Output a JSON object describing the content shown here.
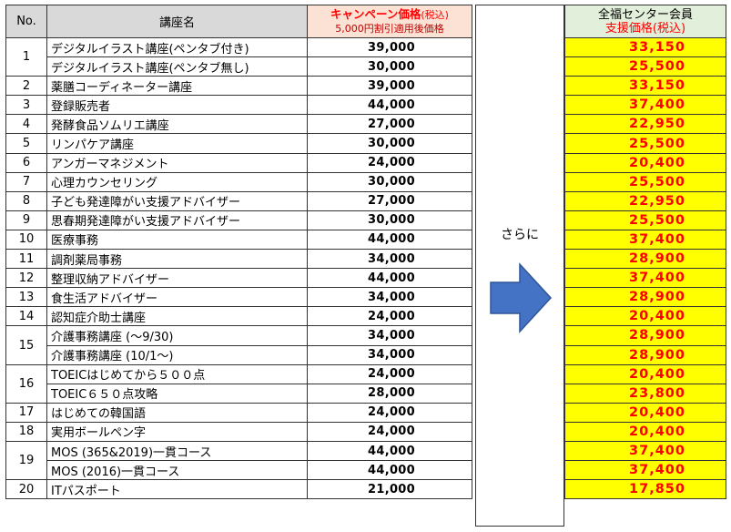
{
  "headers": {
    "no": "No.",
    "name": "講座名",
    "campaign_main": "キャンペーン価格",
    "campaign_tax": "(税込)",
    "campaign_sub": "5,000円割引適用後価格",
    "member_line1": "全福センター会員",
    "member_line2": "支援価格(税込)"
  },
  "middle": {
    "text": "さらに",
    "arrow_icon": "right-arrow",
    "arrow_color": "#4472c4"
  },
  "colors": {
    "highlight": "#ffff00",
    "price_red": "#ff0000",
    "header_gray": "#d9d9d9",
    "header_member": "#e2efda"
  },
  "rows": [
    {
      "no": "1",
      "name": "デジタルイラスト講座(ペンタブ付き)",
      "campaign": "39,000",
      "member": "33,150"
    },
    {
      "no": "",
      "name": "デジタルイラスト講座(ペンタブ無し)",
      "campaign": "30,000",
      "member": "25,500"
    },
    {
      "no": "2",
      "name": "薬膳コーディネーター講座",
      "campaign": "39,000",
      "member": "33,150"
    },
    {
      "no": "3",
      "name": "登録販売者",
      "campaign": "44,000",
      "member": "37,400"
    },
    {
      "no": "4",
      "name": "発酵食品ソムリエ講座",
      "campaign": "27,000",
      "member": "22,950"
    },
    {
      "no": "5",
      "name": "リンパケア講座",
      "campaign": "30,000",
      "member": "25,500"
    },
    {
      "no": "6",
      "name": "アンガーマネジメント",
      "campaign": "24,000",
      "member": "20,400"
    },
    {
      "no": "7",
      "name": "心理カウンセリング",
      "campaign": "30,000",
      "member": "25,500"
    },
    {
      "no": "8",
      "name": "子ども発達障がい支援アドバイザー",
      "campaign": "27,000",
      "member": "22,950"
    },
    {
      "no": "9",
      "name": "思春期発達障がい支援アドバイザー",
      "campaign": "30,000",
      "member": "25,500"
    },
    {
      "no": "10",
      "name": "医療事務",
      "campaign": "44,000",
      "member": "37,400"
    },
    {
      "no": "11",
      "name": "調剤薬局事務",
      "campaign": "34,000",
      "member": "28,900"
    },
    {
      "no": "12",
      "name": "整理収納アドバイザー",
      "campaign": "44,000",
      "member": "37,400"
    },
    {
      "no": "13",
      "name": "食生活アドバイザー",
      "campaign": "34,000",
      "member": "28,900"
    },
    {
      "no": "14",
      "name": "認知症介助士講座",
      "campaign": "24,000",
      "member": "20,400"
    },
    {
      "no": "15",
      "name": "介護事務講座 (～9/30)",
      "campaign": "34,000",
      "member": "28,900"
    },
    {
      "no": "",
      "name": "介護事務講座 (10/1～)",
      "campaign": "34,000",
      "member": "28,900"
    },
    {
      "no": "16",
      "name": "TOEICはじめてから５００点",
      "campaign": "24,000",
      "member": "20,400"
    },
    {
      "no": "",
      "name": "TOEIC６５０点攻略",
      "campaign": "28,000",
      "member": "23,800"
    },
    {
      "no": "17",
      "name": "はじめての韓国語",
      "campaign": "24,000",
      "member": "20,400"
    },
    {
      "no": "18",
      "name": "実用ボールペン字",
      "campaign": "24,000",
      "member": "20,400"
    },
    {
      "no": "19",
      "name": "MOS (365&2019)一貫コース",
      "campaign": "44,000",
      "member": "37,400"
    },
    {
      "no": "",
      "name": "MOS (2016)一貫コース",
      "campaign": "44,000",
      "member": "37,400"
    },
    {
      "no": "20",
      "name": "ITパスポート",
      "campaign": "21,000",
      "member": "17,850"
    }
  ]
}
